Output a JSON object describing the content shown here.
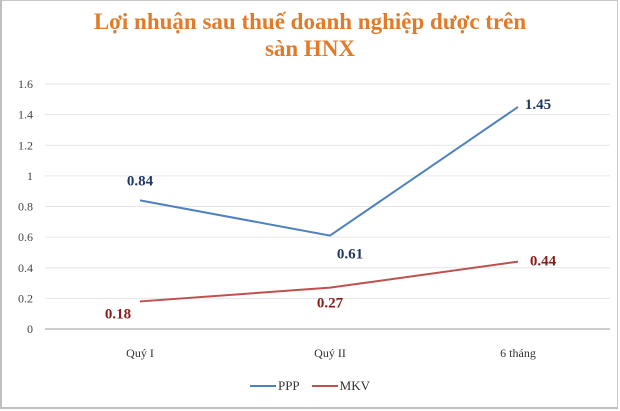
{
  "chart_data": {
    "type": "line",
    "title": "Lợi nhuận sau thuế doanh nghiệp dược trên sàn HNX",
    "title_lines": [
      "Lợi nhuận sau thuế doanh nghiệp dược trên",
      "sàn HNX"
    ],
    "xlabel": "",
    "ylabel": "",
    "categories": [
      "Quý I",
      "Quý II",
      "6 tháng"
    ],
    "series": [
      {
        "name": "PPP",
        "color": "#4f81bd",
        "label_color": "#1f3864",
        "values": [
          0.84,
          0.61,
          1.45
        ]
      },
      {
        "name": "MKV",
        "color": "#c0504d",
        "label_color": "#8b1a1a",
        "values": [
          0.18,
          0.27,
          0.44
        ]
      }
    ],
    "ylim": [
      0,
      1.6
    ],
    "yticks": [
      "0",
      "0.2",
      "0.4",
      "0.6",
      "0.8",
      "1",
      "1.2",
      "1.4",
      "1.6"
    ],
    "grid": true,
    "legend_position": "bottom"
  }
}
